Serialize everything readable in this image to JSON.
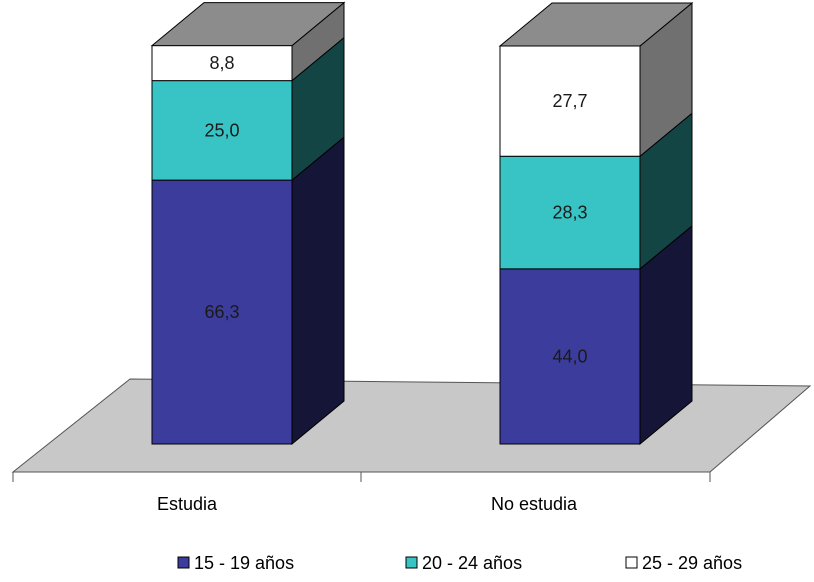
{
  "chart_data": {
    "type": "bar",
    "stacked": true,
    "three_d": true,
    "title": "",
    "xlabel": "",
    "ylabel": "",
    "ylim": [
      0,
      100
    ],
    "grid": false,
    "legend_position": "bottom",
    "categories": [
      "Estudia",
      "No estudia"
    ],
    "series": [
      {
        "name": "15 - 19 años",
        "values": [
          66.3,
          44.0
        ],
        "labels": [
          "66,3",
          "44,0"
        ],
        "color": "#3c3c9c"
      },
      {
        "name": "20 - 24 años",
        "values": [
          25.0,
          28.3
        ],
        "labels": [
          "25,0",
          "28,3"
        ],
        "color": "#38c4c4"
      },
      {
        "name": "25 - 29 años",
        "values": [
          8.8,
          27.7
        ],
        "labels": [
          "8,8",
          "27,7"
        ],
        "color": "#ffffff"
      }
    ],
    "floor_color": "#c8c8c8"
  }
}
